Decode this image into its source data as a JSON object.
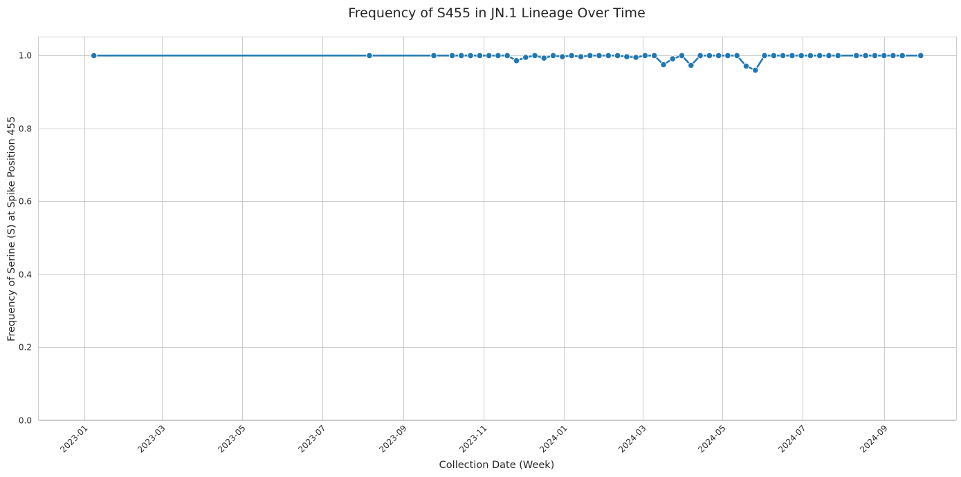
{
  "chart_data": {
    "type": "line",
    "title": "Frequency of S455 in JN.1 Lineage Over Time",
    "xlabel": "Collection Date (Week)",
    "ylabel": "Frequency of Serine (S) at Spike Position 455",
    "xlim": [
      "2022-11-27",
      "2024-10-26"
    ],
    "ylim": [
      0,
      1.05
    ],
    "grid": true,
    "x_ticks": [
      "2023-01",
      "2023-03",
      "2023-05",
      "2023-07",
      "2023-09",
      "2023-11",
      "2024-01",
      "2024-03",
      "2024-05",
      "2024-07",
      "2024-09"
    ],
    "y_ticks": [
      "0.0",
      "0.2",
      "0.4",
      "0.6",
      "0.8",
      "1.0"
    ],
    "series": [
      {
        "color": "#1f77b4",
        "marker": "circle",
        "x": [
          "2023-01-08",
          "2023-08-06",
          "2023-09-24",
          "2023-10-08",
          "2023-10-15",
          "2023-10-22",
          "2023-10-29",
          "2023-11-05",
          "2023-11-12",
          "2023-11-19",
          "2023-11-26",
          "2023-12-03",
          "2023-12-10",
          "2023-12-17",
          "2023-12-24",
          "2023-12-31",
          "2024-01-07",
          "2024-01-14",
          "2024-01-21",
          "2024-01-28",
          "2024-02-04",
          "2024-02-11",
          "2024-02-18",
          "2024-02-25",
          "2024-03-03",
          "2024-03-10",
          "2024-03-17",
          "2024-03-24",
          "2024-03-31",
          "2024-04-07",
          "2024-04-14",
          "2024-04-21",
          "2024-04-28",
          "2024-05-05",
          "2024-05-12",
          "2024-05-19",
          "2024-05-26",
          "2024-06-02",
          "2024-06-09",
          "2024-06-16",
          "2024-06-23",
          "2024-06-30",
          "2024-07-07",
          "2024-07-14",
          "2024-07-21",
          "2024-07-28",
          "2024-08-11",
          "2024-08-18",
          "2024-08-25",
          "2024-09-01",
          "2024-09-08",
          "2024-09-15",
          "2024-09-29"
        ],
        "y": [
          1.0,
          1.0,
          1.0,
          1.0,
          1.0,
          1.0,
          1.0,
          1.0,
          1.0,
          1.0,
          0.986,
          0.995,
          1.0,
          0.993,
          1.0,
          0.997,
          1.0,
          0.997,
          1.0,
          1.0,
          1.0,
          1.0,
          0.997,
          0.995,
          1.0,
          1.0,
          0.975,
          0.991,
          1.0,
          0.973,
          1.0,
          1.0,
          1.0,
          1.0,
          1.0,
          0.971,
          0.96,
          1.0,
          1.0,
          1.0,
          1.0,
          1.0,
          1.0,
          1.0,
          1.0,
          1.0,
          1.0,
          1.0,
          1.0,
          1.0,
          1.0,
          1.0,
          1.0
        ]
      }
    ]
  }
}
